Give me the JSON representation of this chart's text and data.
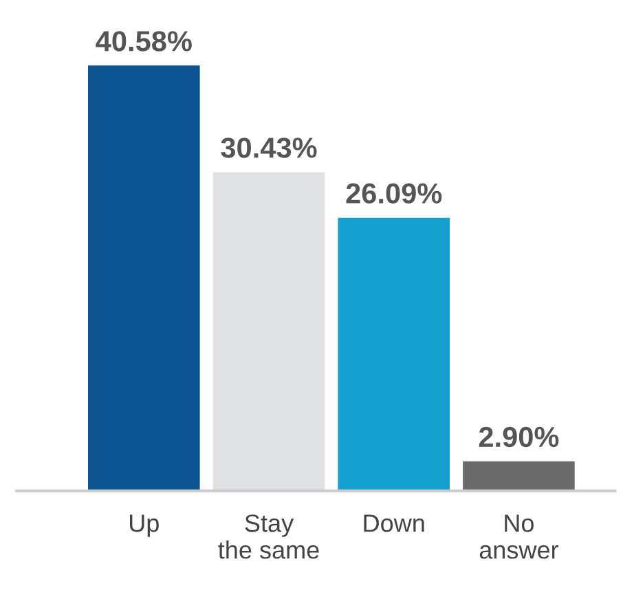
{
  "chart_data": {
    "type": "bar",
    "categories": [
      "Up",
      "Stay\nthe same",
      "Down",
      "No\nanswer"
    ],
    "values": [
      40.58,
      30.43,
      26.09,
      2.9
    ],
    "colors": [
      "#0a5592",
      "#e0e1e3",
      "#16a0d0",
      "#6a6a6a"
    ],
    "value_labels": [
      "40.58%",
      "30.43%",
      "26.09%",
      "2.90%"
    ],
    "grid": false,
    "legend": false
  }
}
